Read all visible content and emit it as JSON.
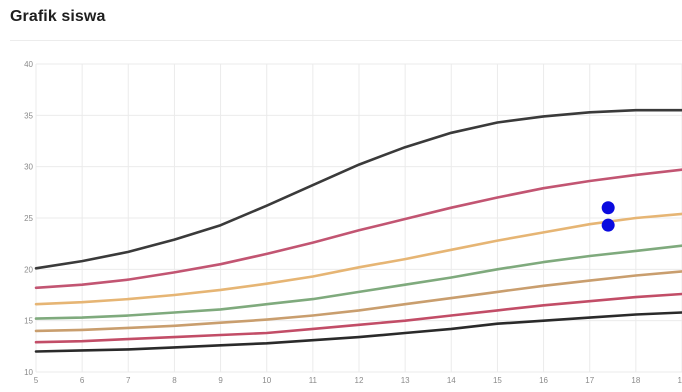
{
  "header": {
    "title": "Grafik siswa"
  },
  "chart_data": {
    "type": "line",
    "title": "Grafik siswa",
    "xlabel": "",
    "ylabel": "",
    "xlim": [
      5,
      19
    ],
    "ylim": [
      10,
      40
    ],
    "x_ticks": [
      5,
      6,
      7,
      8,
      9,
      10,
      11,
      12,
      13,
      14,
      15,
      16,
      17,
      18,
      19
    ],
    "y_ticks": [
      10,
      15,
      20,
      25,
      30,
      35,
      40
    ],
    "grid": true,
    "legend": "none",
    "x": [
      5,
      6,
      7,
      8,
      9,
      10,
      11,
      12,
      13,
      14,
      15,
      16,
      17,
      18,
      19
    ],
    "series": [
      {
        "color": "#3a3a3a",
        "values": [
          20.1,
          20.8,
          21.7,
          22.9,
          24.3,
          26.2,
          28.2,
          30.2,
          31.9,
          33.3,
          34.3,
          34.9,
          35.3,
          35.5,
          35.5
        ]
      },
      {
        "color": "#c25572",
        "values": [
          18.2,
          18.5,
          19.0,
          19.7,
          20.5,
          21.5,
          22.6,
          23.8,
          24.9,
          26.0,
          27.0,
          27.9,
          28.6,
          29.2,
          29.7
        ]
      },
      {
        "color": "#e6b574",
        "values": [
          16.6,
          16.8,
          17.1,
          17.5,
          18.0,
          18.6,
          19.3,
          20.2,
          21.0,
          21.9,
          22.8,
          23.6,
          24.4,
          25.0,
          25.4
        ]
      },
      {
        "color": "#7faa7d",
        "values": [
          15.2,
          15.3,
          15.5,
          15.8,
          16.1,
          16.6,
          17.1,
          17.8,
          18.5,
          19.2,
          20.0,
          20.7,
          21.3,
          21.8,
          22.3
        ]
      },
      {
        "color": "#c99e6e",
        "values": [
          14.0,
          14.1,
          14.3,
          14.5,
          14.8,
          15.1,
          15.5,
          16.0,
          16.6,
          17.2,
          17.8,
          18.4,
          18.9,
          19.4,
          19.8
        ]
      },
      {
        "color": "#c24d67",
        "values": [
          12.9,
          13.0,
          13.2,
          13.4,
          13.6,
          13.8,
          14.2,
          14.6,
          15.0,
          15.5,
          16.0,
          16.5,
          16.9,
          17.3,
          17.6
        ]
      },
      {
        "color": "#2a2a2a",
        "values": [
          12.0,
          12.1,
          12.2,
          12.4,
          12.6,
          12.8,
          13.1,
          13.4,
          13.8,
          14.2,
          14.7,
          15.0,
          15.3,
          15.6,
          15.8
        ]
      }
    ],
    "points": [
      {
        "x": 17.4,
        "y": 26.0,
        "color": "#0a0adf"
      },
      {
        "x": 17.4,
        "y": 24.3,
        "color": "#0a0adf"
      }
    ],
    "colors": {
      "grid": "#ebebeb",
      "axis_text": "#8a8a8a",
      "points": "#0a0adf"
    }
  }
}
